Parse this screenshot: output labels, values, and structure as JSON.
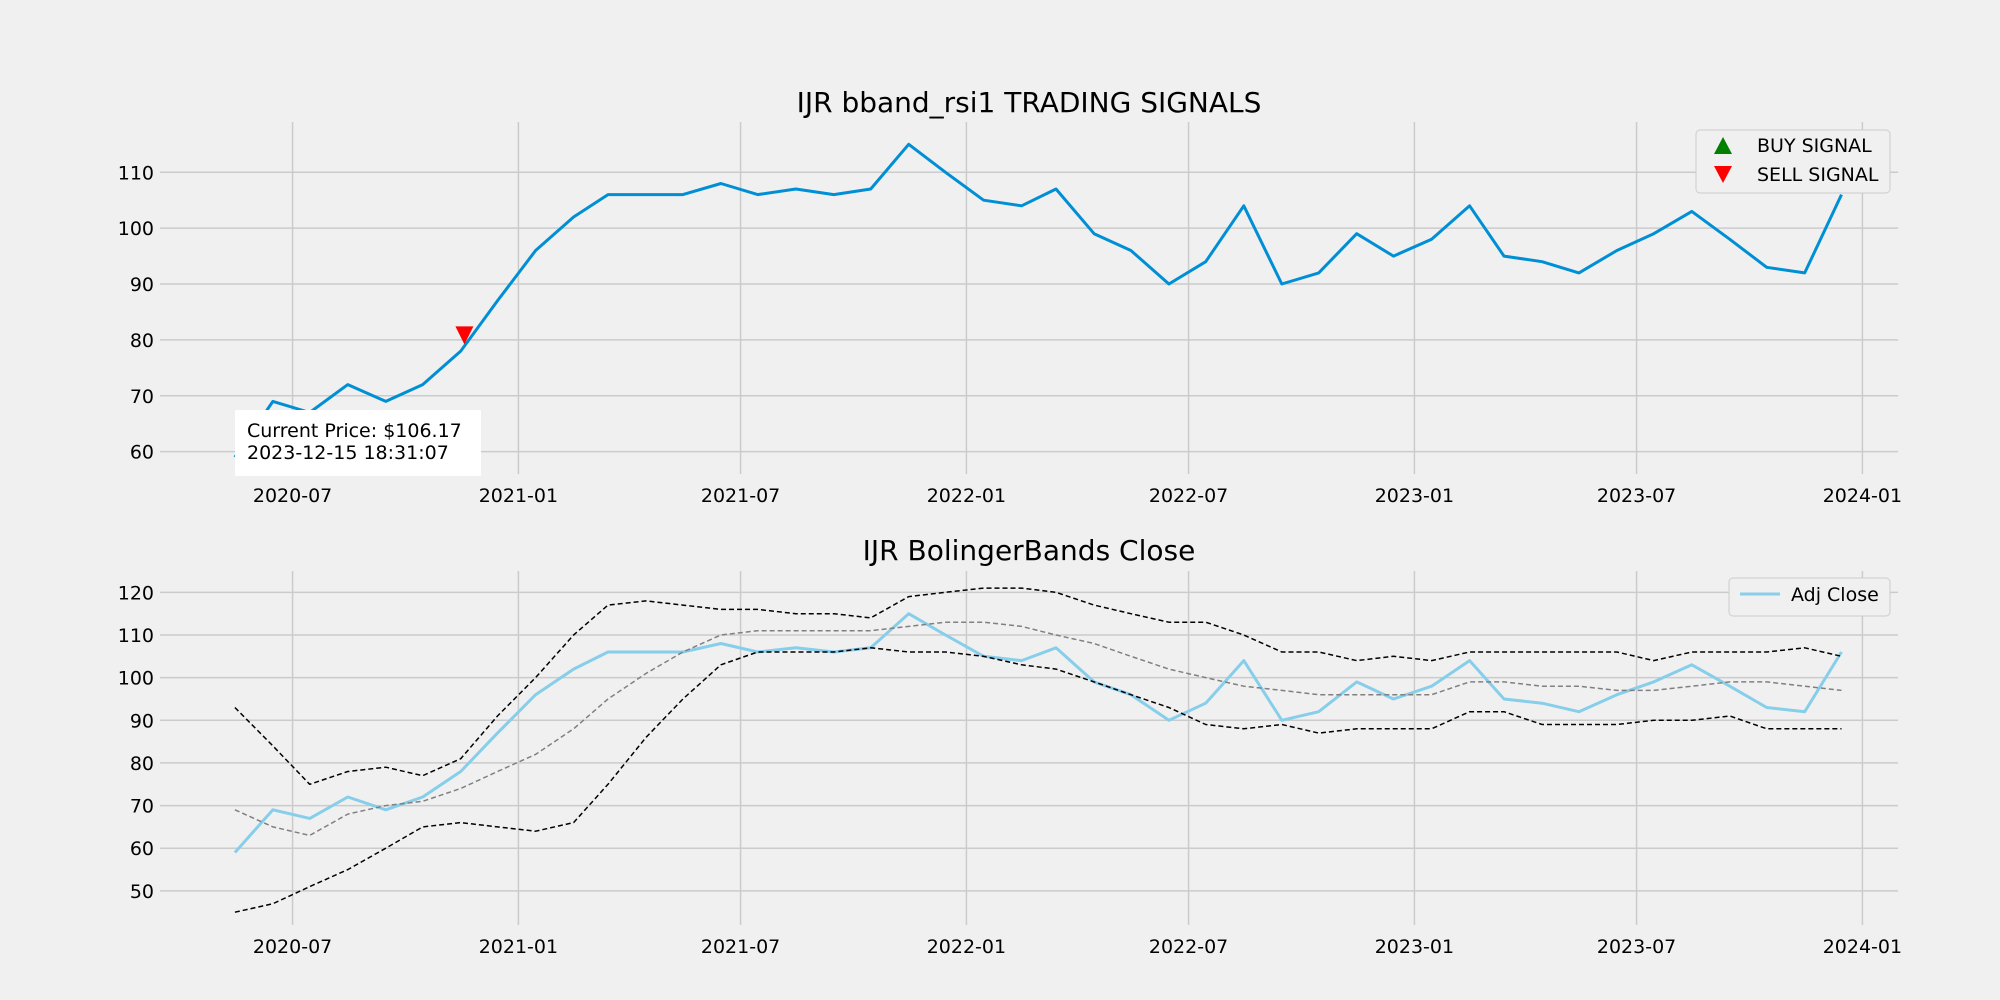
{
  "colors": {
    "background": "#f0f0f0",
    "grid": "#cbcbcb",
    "price_line": "#008fd5",
    "adj_close_line": "#87ceeb",
    "band_line": "#000000",
    "mid_band_line": "#808080",
    "buy_marker": "#008000",
    "sell_marker": "#ff0000"
  },
  "chart_data": [
    {
      "type": "line",
      "title": "IJR bband_rsi1 TRADING SIGNALS",
      "xlabel": "",
      "ylabel": "",
      "x_ticks": [
        "2020-07",
        "2021-01",
        "2021-07",
        "2022-01",
        "2022-07",
        "2023-01",
        "2023-07",
        "2024-01"
      ],
      "y_ticks": [
        60,
        70,
        80,
        90,
        100,
        110
      ],
      "xlim": [
        "2020-03-15",
        "2024-01-30"
      ],
      "ylim": [
        56,
        119
      ],
      "grid": true,
      "legend_position": "top-right",
      "legend": [
        {
          "label": "BUY SIGNAL",
          "marker": "triangle-up",
          "color": "#008000"
        },
        {
          "label": "SELL SIGNAL",
          "marker": "triangle-down",
          "color": "#ff0000"
        }
      ],
      "series": [
        {
          "color": "#008fd5",
          "x": [
            "2020-05-15",
            "2020-06-15",
            "2020-07-15",
            "2020-08-15",
            "2020-09-15",
            "2020-10-15",
            "2020-11-15",
            "2020-12-15",
            "2021-01-15",
            "2021-02-15",
            "2021-03-15",
            "2021-04-15",
            "2021-05-15",
            "2021-06-15",
            "2021-07-15",
            "2021-08-15",
            "2021-09-15",
            "2021-10-15",
            "2021-11-15",
            "2021-12-15",
            "2022-01-15",
            "2022-02-15",
            "2022-03-15",
            "2022-04-15",
            "2022-05-15",
            "2022-06-15",
            "2022-07-15",
            "2022-08-15",
            "2022-09-15",
            "2022-10-15",
            "2022-11-15",
            "2022-12-15",
            "2023-01-15",
            "2023-02-15",
            "2023-03-15",
            "2023-04-15",
            "2023-05-15",
            "2023-06-15",
            "2023-07-15",
            "2023-08-15",
            "2023-09-15",
            "2023-10-15",
            "2023-11-15",
            "2023-12-15"
          ],
          "values": [
            59,
            69,
            67,
            72,
            69,
            72,
            78,
            87,
            96,
            102,
            106,
            106,
            106,
            108,
            106,
            107,
            106,
            107,
            115,
            110,
            105,
            104,
            107,
            99,
            96,
            90,
            94,
            104,
            90,
            92,
            99,
            95,
            98,
            104,
            95,
            94,
            92,
            96,
            99,
            103,
            98,
            93,
            92,
            106
          ]
        }
      ],
      "signals": {
        "buy": [],
        "sell": [
          {
            "x": "2020-11-18",
            "y": 81
          }
        ]
      },
      "annotation": [
        "Current Price: $106.17",
        "2023-12-15 18:31:07"
      ]
    },
    {
      "type": "line",
      "title": "IJR BolingerBands Close",
      "xlabel": "",
      "ylabel": "",
      "x_ticks": [
        "2020-07",
        "2021-01",
        "2021-07",
        "2022-01",
        "2022-07",
        "2023-01",
        "2023-07",
        "2024-01"
      ],
      "y_ticks": [
        50,
        60,
        70,
        80,
        90,
        100,
        110,
        120
      ],
      "xlim": [
        "2020-03-15",
        "2024-01-30"
      ],
      "ylim": [
        42,
        125
      ],
      "grid": true,
      "legend_position": "top-right",
      "legend": [
        {
          "label": "Adj Close",
          "marker": "line",
          "color": "#87ceeb"
        }
      ],
      "series": [
        {
          "name": "Adj Close",
          "color": "#87ceeb",
          "style": "solid",
          "x": [
            "2020-05-15",
            "2020-06-15",
            "2020-07-15",
            "2020-08-15",
            "2020-09-15",
            "2020-10-15",
            "2020-11-15",
            "2020-12-15",
            "2021-01-15",
            "2021-02-15",
            "2021-03-15",
            "2021-04-15",
            "2021-05-15",
            "2021-06-15",
            "2021-07-15",
            "2021-08-15",
            "2021-09-15",
            "2021-10-15",
            "2021-11-15",
            "2021-12-15",
            "2022-01-15",
            "2022-02-15",
            "2022-03-15",
            "2022-04-15",
            "2022-05-15",
            "2022-06-15",
            "2022-07-15",
            "2022-08-15",
            "2022-09-15",
            "2022-10-15",
            "2022-11-15",
            "2022-12-15",
            "2023-01-15",
            "2023-02-15",
            "2023-03-15",
            "2023-04-15",
            "2023-05-15",
            "2023-06-15",
            "2023-07-15",
            "2023-08-15",
            "2023-09-15",
            "2023-10-15",
            "2023-11-15",
            "2023-12-15"
          ],
          "values": [
            59,
            69,
            67,
            72,
            69,
            72,
            78,
            87,
            96,
            102,
            106,
            106,
            106,
            108,
            106,
            107,
            106,
            107,
            115,
            110,
            105,
            104,
            107,
            99,
            96,
            90,
            94,
            104,
            90,
            92,
            99,
            95,
            98,
            104,
            95,
            94,
            92,
            96,
            99,
            103,
            98,
            93,
            92,
            106
          ]
        },
        {
          "color": "#000000",
          "style": "dashed",
          "x": [
            "2020-05-15",
            "2020-06-15",
            "2020-07-15",
            "2020-08-15",
            "2020-09-15",
            "2020-10-15",
            "2020-11-15",
            "2020-12-15",
            "2021-01-15",
            "2021-02-15",
            "2021-03-15",
            "2021-04-15",
            "2021-05-15",
            "2021-06-15",
            "2021-07-15",
            "2021-08-15",
            "2021-09-15",
            "2021-10-15",
            "2021-11-15",
            "2021-12-15",
            "2022-01-15",
            "2022-02-15",
            "2022-03-15",
            "2022-04-15",
            "2022-05-15",
            "2022-06-15",
            "2022-07-15",
            "2022-08-15",
            "2022-09-15",
            "2022-10-15",
            "2022-11-15",
            "2022-12-15",
            "2023-01-15",
            "2023-02-15",
            "2023-03-15",
            "2023-04-15",
            "2023-05-15",
            "2023-06-15",
            "2023-07-15",
            "2023-08-15",
            "2023-09-15",
            "2023-10-15",
            "2023-11-15",
            "2023-12-15"
          ],
          "values": [
            93,
            84,
            75,
            78,
            79,
            77,
            81,
            91,
            100,
            110,
            117,
            118,
            117,
            116,
            116,
            115,
            115,
            114,
            119,
            120,
            121,
            121,
            120,
            117,
            115,
            113,
            113,
            110,
            106,
            106,
            104,
            105,
            104,
            106,
            106,
            106,
            106,
            106,
            104,
            106,
            106,
            106,
            107,
            105
          ]
        },
        {
          "color": "#808080",
          "style": "dashed",
          "x": [
            "2020-05-15",
            "2020-06-15",
            "2020-07-15",
            "2020-08-15",
            "2020-09-15",
            "2020-10-15",
            "2020-11-15",
            "2020-12-15",
            "2021-01-15",
            "2021-02-15",
            "2021-03-15",
            "2021-04-15",
            "2021-05-15",
            "2021-06-15",
            "2021-07-15",
            "2021-08-15",
            "2021-09-15",
            "2021-10-15",
            "2021-11-15",
            "2021-12-15",
            "2022-01-15",
            "2022-02-15",
            "2022-03-15",
            "2022-04-15",
            "2022-05-15",
            "2022-06-15",
            "2022-07-15",
            "2022-08-15",
            "2022-09-15",
            "2022-10-15",
            "2022-11-15",
            "2022-12-15",
            "2023-01-15",
            "2023-02-15",
            "2023-03-15",
            "2023-04-15",
            "2023-05-15",
            "2023-06-15",
            "2023-07-15",
            "2023-08-15",
            "2023-09-15",
            "2023-10-15",
            "2023-11-15",
            "2023-12-15"
          ],
          "values": [
            69,
            65,
            63,
            68,
            70,
            71,
            74,
            78,
            82,
            88,
            95,
            101,
            106,
            110,
            111,
            111,
            111,
            111,
            112,
            113,
            113,
            112,
            110,
            108,
            105,
            102,
            100,
            98,
            97,
            96,
            96,
            96,
            96,
            99,
            99,
            98,
            98,
            97,
            97,
            98,
            99,
            99,
            98,
            97
          ]
        },
        {
          "color": "#000000",
          "style": "dashed",
          "x": [
            "2020-05-15",
            "2020-06-15",
            "2020-07-15",
            "2020-08-15",
            "2020-09-15",
            "2020-10-15",
            "2020-11-15",
            "2020-12-15",
            "2021-01-15",
            "2021-02-15",
            "2021-03-15",
            "2021-04-15",
            "2021-05-15",
            "2021-06-15",
            "2021-07-15",
            "2021-08-15",
            "2021-09-15",
            "2021-10-15",
            "2021-11-15",
            "2021-12-15",
            "2022-01-15",
            "2022-02-15",
            "2022-03-15",
            "2022-04-15",
            "2022-05-15",
            "2022-06-15",
            "2022-07-15",
            "2022-08-15",
            "2022-09-15",
            "2022-10-15",
            "2022-11-15",
            "2022-12-15",
            "2023-01-15",
            "2023-02-15",
            "2023-03-15",
            "2023-04-15",
            "2023-05-15",
            "2023-06-15",
            "2023-07-15",
            "2023-08-15",
            "2023-09-15",
            "2023-10-15",
            "2023-11-15",
            "2023-12-15"
          ],
          "values": [
            45,
            47,
            51,
            55,
            60,
            65,
            66,
            65,
            64,
            66,
            75,
            86,
            95,
            103,
            106,
            106,
            106,
            107,
            106,
            106,
            105,
            103,
            102,
            99,
            96,
            93,
            89,
            88,
            89,
            87,
            88,
            88,
            88,
            92,
            92,
            89,
            89,
            89,
            90,
            90,
            91,
            88,
            88,
            88
          ]
        }
      ]
    }
  ]
}
